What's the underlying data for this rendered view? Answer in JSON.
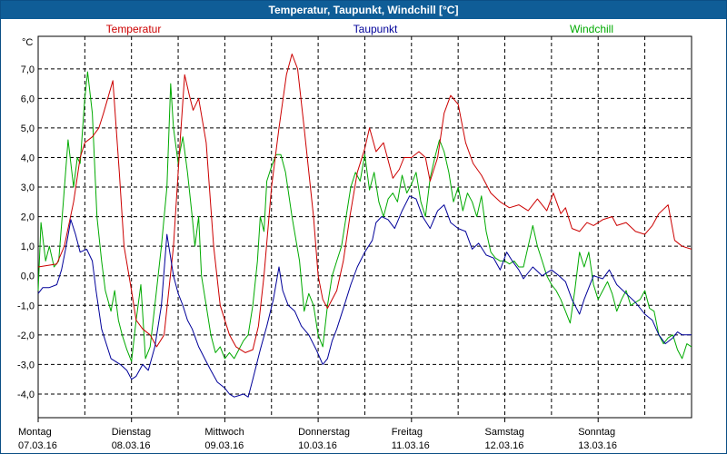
{
  "window": {
    "title": "Temperatur, Taupunkt, Windchill [°C]"
  },
  "chart_data": {
    "type": "line",
    "title": "Temperatur, Taupunkt, Windchill [°C]",
    "ylabel": "°C",
    "ylim": [
      -4.8,
      8.1
    ],
    "xlim": [
      0,
      7
    ],
    "yticks": [
      7.0,
      6.0,
      5.0,
      4.0,
      3.0,
      2.0,
      1.0,
      0.0,
      -1.0,
      -2.0,
      -3.0,
      -4.0
    ],
    "ytick_labels": [
      "7,0",
      "6,0",
      "5,0",
      "4,0",
      "3,0",
      "2,0",
      "1,0",
      "0,0",
      "-1,0",
      "-2,0",
      "-3,0",
      "-4,0"
    ],
    "xticks": [
      {
        "day": "Montag",
        "date": "07.03.16",
        "x": 0
      },
      {
        "day": "Dienstag",
        "date": "08.03.16",
        "x": 1
      },
      {
        "day": "Mittwoch",
        "date": "09.03.16",
        "x": 2
      },
      {
        "day": "Donnerstag",
        "date": "10.03.16",
        "x": 3
      },
      {
        "day": "Freitag",
        "date": "11.03.16",
        "x": 4
      },
      {
        "day": "Samstag",
        "date": "12.03.16",
        "x": 5
      },
      {
        "day": "Sonntag",
        "date": "13.03.16",
        "x": 6
      }
    ],
    "vgrid": [
      0.5,
      1,
      1.5,
      2,
      2.5,
      3,
      3.5,
      4,
      4.5,
      5,
      5.5,
      6,
      6.5,
      7
    ],
    "series": [
      {
        "name": "Temperatur",
        "color": "#cc0000",
        "x": [
          0,
          0.2,
          0.28,
          0.38,
          0.45,
          0.5,
          0.58,
          0.65,
          0.7,
          0.8,
          0.87,
          0.92,
          1.0,
          1.05,
          1.12,
          1.2,
          1.27,
          1.35,
          1.45,
          1.52,
          1.57,
          1.62,
          1.66,
          1.72,
          1.8,
          1.88,
          1.95,
          2.05,
          2.12,
          2.22,
          2.3,
          2.36,
          2.42,
          2.5,
          2.58,
          2.66,
          2.72,
          2.78,
          2.85,
          2.95,
          3.0,
          3.05,
          3.1,
          3.2,
          3.27,
          3.34,
          3.42,
          3.5,
          3.55,
          3.62,
          3.7,
          3.8,
          3.87,
          3.92,
          4.0,
          4.08,
          4.15,
          4.2,
          4.28,
          4.35,
          4.42,
          4.5,
          4.58,
          4.66,
          4.75,
          4.85,
          4.95,
          5.05,
          5.15,
          5.25,
          5.35,
          5.45,
          5.52,
          5.6,
          5.65,
          5.72,
          5.8,
          5.88,
          5.95,
          6.05,
          6.15,
          6.2,
          6.3,
          6.4,
          6.5,
          6.58,
          6.65,
          6.75,
          6.82,
          6.9,
          7.0
        ],
        "y": [
          0.3,
          0.4,
          1.0,
          2.5,
          4.0,
          4.5,
          4.7,
          5.0,
          5.5,
          6.6,
          3.5,
          1.0,
          -0.5,
          -1.5,
          -1.8,
          -2.0,
          -2.4,
          -2.0,
          1.0,
          4.5,
          6.8,
          6.1,
          5.6,
          6.0,
          4.5,
          1.0,
          -1.0,
          -2.0,
          -2.4,
          -2.6,
          -2.5,
          -1.7,
          0.0,
          3.0,
          5.0,
          6.8,
          7.5,
          7.0,
          5.0,
          2.0,
          0.0,
          -0.8,
          -1.1,
          -0.5,
          0.5,
          2.0,
          3.5,
          4.3,
          5.0,
          4.2,
          4.5,
          3.3,
          3.6,
          4.0,
          4.0,
          4.2,
          4.0,
          3.2,
          4.0,
          5.5,
          6.1,
          5.8,
          4.5,
          3.8,
          3.4,
          2.8,
          2.5,
          2.3,
          2.4,
          2.2,
          2.6,
          2.2,
          2.8,
          2.1,
          2.3,
          1.6,
          1.5,
          1.8,
          1.7,
          1.9,
          2.0,
          1.7,
          1.8,
          1.5,
          1.4,
          1.7,
          2.1,
          2.4,
          1.2,
          1.0,
          0.9
        ]
      },
      {
        "name": "Taupunkt",
        "color": "#000099",
        "x": [
          0,
          0.05,
          0.12,
          0.2,
          0.25,
          0.3,
          0.35,
          0.4,
          0.45,
          0.52,
          0.58,
          0.62,
          0.68,
          0.78,
          0.88,
          0.95,
          1.0,
          1.05,
          1.12,
          1.18,
          1.25,
          1.32,
          1.38,
          1.45,
          1.5,
          1.55,
          1.6,
          1.65,
          1.72,
          1.8,
          1.85,
          1.92,
          2.0,
          2.05,
          2.1,
          2.15,
          2.2,
          2.25,
          2.3,
          2.38,
          2.45,
          2.52,
          2.58,
          2.62,
          2.68,
          2.75,
          2.82,
          2.9,
          2.98,
          3.05,
          3.1,
          3.15,
          3.2,
          3.28,
          3.35,
          3.42,
          3.5,
          3.58,
          3.62,
          3.68,
          3.75,
          3.82,
          3.9,
          3.98,
          4.05,
          4.12,
          4.2,
          4.28,
          4.35,
          4.42,
          4.5,
          4.58,
          4.65,
          4.72,
          4.8,
          4.88,
          4.95,
          5.02,
          5.08,
          5.15,
          5.2,
          5.3,
          5.4,
          5.5,
          5.58,
          5.65,
          5.72,
          5.8,
          5.85,
          5.95,
          6.05,
          6.12,
          6.2,
          6.3,
          6.4,
          6.5,
          6.58,
          6.65,
          6.72,
          6.8,
          6.85,
          6.9,
          6.95,
          7.0
        ],
        "y": [
          -0.6,
          -0.4,
          -0.4,
          -0.3,
          0.2,
          1.0,
          1.9,
          1.4,
          0.8,
          0.9,
          0.5,
          -0.5,
          -1.8,
          -2.8,
          -3.0,
          -3.2,
          -3.5,
          -3.4,
          -3.0,
          -3.2,
          -2.4,
          -1.0,
          1.4,
          0.0,
          -0.6,
          -1.0,
          -1.5,
          -1.8,
          -2.4,
          -2.9,
          -3.2,
          -3.6,
          -3.8,
          -4.0,
          -4.1,
          -4.05,
          -4.0,
          -4.1,
          -3.5,
          -2.5,
          -1.7,
          -0.8,
          0.3,
          -0.5,
          -1.0,
          -1.2,
          -1.7,
          -2.0,
          -2.5,
          -3.0,
          -2.8,
          -2.2,
          -1.8,
          -1.0,
          -0.3,
          0.3,
          0.8,
          1.2,
          1.8,
          2.0,
          1.9,
          1.6,
          2.2,
          2.7,
          2.6,
          2.0,
          1.6,
          2.2,
          2.4,
          1.8,
          1.6,
          1.5,
          0.9,
          1.1,
          0.7,
          0.6,
          0.2,
          0.8,
          0.5,
          0.2,
          -0.1,
          0.3,
          0.0,
          0.2,
          0.0,
          -0.2,
          -0.8,
          -1.3,
          -0.8,
          0.0,
          -0.1,
          0.2,
          -0.3,
          -0.6,
          -0.9,
          -1.3,
          -1.5,
          -2.0,
          -2.3,
          -2.1,
          -1.9,
          -2.0,
          -2.0,
          -2.0
        ]
      },
      {
        "name": "Windchill",
        "color": "#00aa00",
        "x": [
          0,
          0.03,
          0.08,
          0.12,
          0.17,
          0.22,
          0.27,
          0.32,
          0.38,
          0.42,
          0.45,
          0.5,
          0.53,
          0.58,
          0.63,
          0.68,
          0.72,
          0.78,
          0.82,
          0.86,
          0.9,
          0.95,
          1.0,
          1.05,
          1.1,
          1.15,
          1.2,
          1.25,
          1.32,
          1.38,
          1.42,
          1.45,
          1.5,
          1.52,
          1.55,
          1.6,
          1.65,
          1.68,
          1.72,
          1.75,
          1.8,
          1.85,
          1.9,
          1.95,
          2.0,
          2.05,
          2.1,
          2.15,
          2.2,
          2.25,
          2.3,
          2.35,
          2.38,
          2.42,
          2.45,
          2.5,
          2.55,
          2.6,
          2.65,
          2.72,
          2.8,
          2.85,
          2.9,
          2.95,
          3.0,
          3.05,
          3.1,
          3.15,
          3.2,
          3.25,
          3.3,
          3.35,
          3.4,
          3.45,
          3.5,
          3.55,
          3.6,
          3.65,
          3.7,
          3.75,
          3.8,
          3.85,
          3.9,
          3.95,
          4.0,
          4.05,
          4.1,
          4.15,
          4.2,
          4.25,
          4.3,
          4.35,
          4.4,
          4.45,
          4.5,
          4.55,
          4.6,
          4.65,
          4.7,
          4.75,
          4.8,
          4.85,
          4.9,
          4.95,
          5.0,
          5.05,
          5.1,
          5.15,
          5.2,
          5.25,
          5.3,
          5.35,
          5.4,
          5.45,
          5.5,
          5.55,
          5.6,
          5.65,
          5.7,
          5.75,
          5.8,
          5.85,
          5.9,
          5.95,
          6.0,
          6.05,
          6.1,
          6.15,
          6.2,
          6.25,
          6.3,
          6.35,
          6.4,
          6.45,
          6.5,
          6.55,
          6.6,
          6.65,
          6.7,
          6.75,
          6.8,
          6.85,
          6.9,
          6.95,
          7.0
        ],
        "y": [
          -0.5,
          1.8,
          0.5,
          1.0,
          0.3,
          0.5,
          2.5,
          4.6,
          3.0,
          4.0,
          3.8,
          6.0,
          6.9,
          5.5,
          2.0,
          0.5,
          -0.5,
          -1.2,
          -0.5,
          -1.5,
          -2.0,
          -2.5,
          -2.9,
          -1.5,
          -0.3,
          -2.8,
          -2.4,
          -1.0,
          1.0,
          3.0,
          6.5,
          5.0,
          3.8,
          4.2,
          4.7,
          3.5,
          2.0,
          1.0,
          2.0,
          0.0,
          -1.0,
          -2.0,
          -2.6,
          -2.4,
          -2.8,
          -2.6,
          -2.8,
          -2.5,
          -2.2,
          -2.0,
          -1.0,
          0.5,
          2.0,
          1.5,
          3.2,
          3.7,
          4.1,
          4.1,
          3.5,
          2.0,
          0.5,
          -1.2,
          -0.6,
          -1.0,
          -2.0,
          -2.4,
          -1.0,
          0.0,
          0.5,
          1.0,
          2.0,
          3.0,
          3.5,
          3.2,
          4.1,
          2.9,
          3.5,
          2.5,
          2.0,
          2.6,
          2.8,
          2.5,
          3.4,
          2.8,
          3.1,
          3.5,
          2.5,
          2.0,
          3.3,
          4.0,
          4.6,
          4.2,
          3.5,
          2.5,
          3.0,
          2.2,
          2.8,
          2.5,
          2.0,
          2.7,
          1.5,
          0.8,
          0.6,
          0.5,
          0.5,
          0.4,
          0.5,
          0.3,
          0.3,
          1.0,
          1.7,
          1.0,
          0.5,
          0.0,
          -0.3,
          -0.5,
          -0.8,
          -1.2,
          -1.6,
          -0.5,
          0.8,
          0.3,
          0.8,
          -0.3,
          -0.8,
          -0.5,
          -0.2,
          -0.6,
          -1.2,
          -0.8,
          -0.5,
          -1.0,
          -0.9,
          -0.8,
          -0.5,
          -1.1,
          -1.2,
          -2.0,
          -2.3,
          -2.1,
          -2.0,
          -2.5,
          -2.8,
          -2.3,
          -2.4
        ]
      }
    ]
  }
}
